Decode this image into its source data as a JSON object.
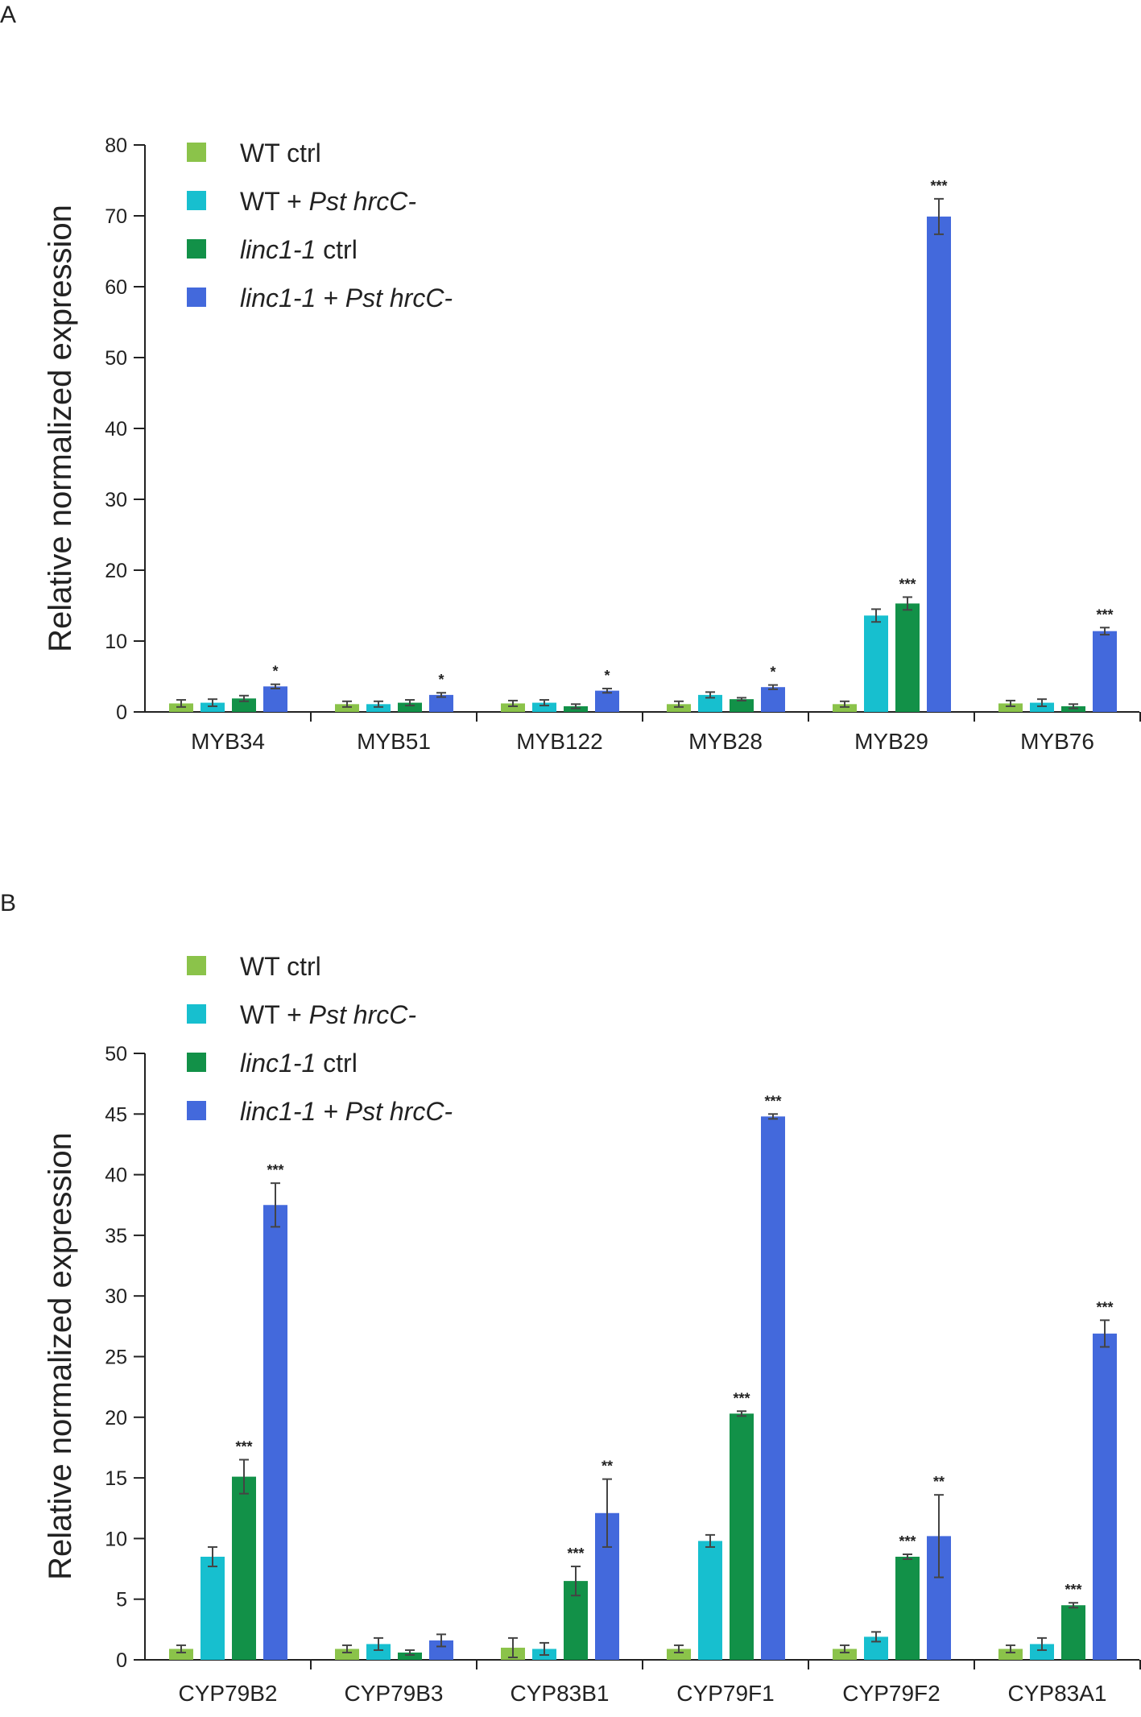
{
  "series_colors": [
    "#8bc34a",
    "#17bfcf",
    "#129148",
    "#4369dc"
  ],
  "chart_data": [
    {
      "panel_label": "A",
      "type": "bar",
      "ylabel": "Relative normalized expression",
      "ylim": [
        0,
        80
      ],
      "yticks": [
        0,
        10,
        20,
        30,
        40,
        50,
        60,
        70,
        80
      ],
      "grid": false,
      "legend_position": "top-left",
      "legend": [
        {
          "plain": "WT ctrl",
          "italic": "",
          "rest": ""
        },
        {
          "plain": "WT + ",
          "italic": "Pst hrcC-",
          "rest": ""
        },
        {
          "plain": "",
          "italic": "linc1-1",
          "rest": " ctrl"
        },
        {
          "plain": "",
          "italic": "linc1-1 + Pst hrcC-",
          "rest": ""
        }
      ],
      "categories": [
        "MYB34",
        "MYB51",
        "MYB122",
        "MYB28",
        "MYB29",
        "MYB76"
      ],
      "series": [
        {
          "name": "WT ctrl",
          "values": [
            1.2,
            1.1,
            1.2,
            1.1,
            1.1,
            1.2
          ],
          "errors": [
            0.5,
            0.4,
            0.4,
            0.4,
            0.4,
            0.4
          ]
        },
        {
          "name": "WT + Pst hrcC-",
          "values": [
            1.3,
            1.1,
            1.3,
            2.4,
            13.6,
            1.3
          ],
          "errors": [
            0.5,
            0.4,
            0.4,
            0.4,
            0.9,
            0.5
          ]
        },
        {
          "name": "linc1-1 ctrl",
          "values": [
            1.9,
            1.3,
            0.8,
            1.8,
            15.3,
            0.8
          ],
          "errors": [
            0.4,
            0.4,
            0.3,
            0.2,
            0.9,
            0.3
          ]
        },
        {
          "name": "linc1-1 + Pst hrcC-",
          "values": [
            3.6,
            2.4,
            3.0,
            3.5,
            69.9,
            11.4
          ],
          "errors": [
            0.3,
            0.3,
            0.3,
            0.3,
            2.5,
            0.5
          ]
        }
      ],
      "significance": [
        [
          "",
          "",
          "",
          "*"
        ],
        [
          "",
          "",
          "",
          "*"
        ],
        [
          "",
          "",
          "",
          "*"
        ],
        [
          "",
          "",
          "",
          "*"
        ],
        [
          "",
          "",
          "***",
          "***"
        ],
        [
          "",
          "",
          "",
          "***"
        ]
      ]
    },
    {
      "panel_label": "B",
      "type": "bar",
      "ylabel": "Relative normalized expression",
      "ylim": [
        0,
        50
      ],
      "yticks": [
        0,
        5,
        10,
        15,
        20,
        25,
        30,
        35,
        40,
        45,
        50
      ],
      "grid": false,
      "legend_position": "top-left",
      "legend": [
        {
          "plain": "WT ctrl",
          "italic": "",
          "rest": ""
        },
        {
          "plain": "WT + ",
          "italic": "Pst hrcC-",
          "rest": ""
        },
        {
          "plain": "",
          "italic": "linc1-1",
          "rest": " ctrl"
        },
        {
          "plain": "",
          "italic": "linc1-1 + Pst hrcC-",
          "rest": ""
        }
      ],
      "categories": [
        "CYP79B2",
        "CYP79B3",
        "CYP83B1",
        "CYP79F1",
        "CYP79F2",
        "CYP83A1"
      ],
      "series": [
        {
          "name": "WT ctrl",
          "values": [
            0.9,
            0.9,
            1.0,
            0.9,
            0.9,
            0.9
          ],
          "errors": [
            0.3,
            0.3,
            0.8,
            0.3,
            0.3,
            0.3
          ]
        },
        {
          "name": "WT + Pst hrcC-",
          "values": [
            8.5,
            1.3,
            0.9,
            9.8,
            1.9,
            1.3
          ],
          "errors": [
            0.8,
            0.5,
            0.5,
            0.5,
            0.4,
            0.5
          ]
        },
        {
          "name": "linc1-1 ctrl",
          "values": [
            15.1,
            0.6,
            6.5,
            20.3,
            8.5,
            4.5
          ],
          "errors": [
            1.4,
            0.2,
            1.2,
            0.2,
            0.2,
            0.2
          ]
        },
        {
          "name": "linc1-1 + Pst hrcC-",
          "values": [
            37.5,
            1.6,
            12.1,
            44.8,
            10.2,
            26.9
          ],
          "errors": [
            1.8,
            0.5,
            2.8,
            0.2,
            3.4,
            1.1
          ]
        }
      ],
      "significance": [
        [
          "",
          "",
          "***",
          "***"
        ],
        [
          "",
          "",
          "",
          ""
        ],
        [
          "",
          "",
          "***",
          "**"
        ],
        [
          "",
          "",
          "***",
          "***"
        ],
        [
          "",
          "",
          "***",
          "**"
        ],
        [
          "",
          "",
          "***",
          "***"
        ]
      ]
    }
  ]
}
